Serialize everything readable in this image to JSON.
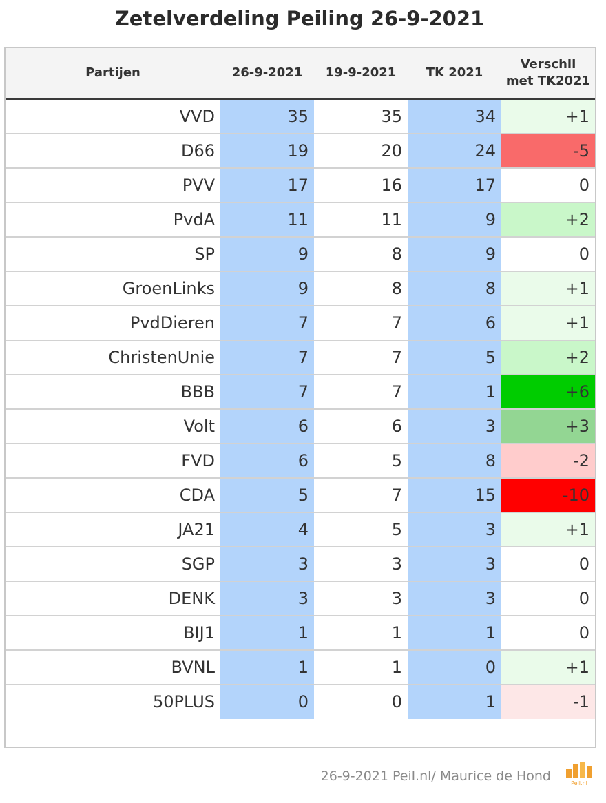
{
  "chart_data": {
    "type": "table",
    "title": "Zetelverdeling Peiling 26-9-2021",
    "columns": [
      "Partijen",
      "26-9-2021",
      "19-9-2021",
      "TK 2021",
      "Verschil met TK2021"
    ],
    "rows": [
      {
        "party": "VVD",
        "p26": "35",
        "p19": "35",
        "tk": "34",
        "diff": "+1"
      },
      {
        "party": "D66",
        "p26": "19",
        "p19": "20",
        "tk": "24",
        "diff": "-5"
      },
      {
        "party": "PVV",
        "p26": "17",
        "p19": "16",
        "tk": "17",
        "diff": "0"
      },
      {
        "party": "PvdA",
        "p26": "11",
        "p19": "11",
        "tk": "9",
        "diff": "+2"
      },
      {
        "party": "SP",
        "p26": "9",
        "p19": "8",
        "tk": "9",
        "diff": "0"
      },
      {
        "party": "GroenLinks",
        "p26": "9",
        "p19": "8",
        "tk": "8",
        "diff": "+1"
      },
      {
        "party": "PvdDieren",
        "p26": "7",
        "p19": "7",
        "tk": "6",
        "diff": "+1"
      },
      {
        "party": "ChristenUnie",
        "p26": "7",
        "p19": "7",
        "tk": "5",
        "diff": "+2"
      },
      {
        "party": "BBB",
        "p26": "7",
        "p19": "7",
        "tk": "1",
        "diff": "+6"
      },
      {
        "party": "Volt",
        "p26": "6",
        "p19": "6",
        "tk": "3",
        "diff": "+3"
      },
      {
        "party": "FVD",
        "p26": "6",
        "p19": "5",
        "tk": "8",
        "diff": "-2"
      },
      {
        "party": "CDA",
        "p26": "5",
        "p19": "7",
        "tk": "15",
        "diff": "-10"
      },
      {
        "party": "JA21",
        "p26": "4",
        "p19": "5",
        "tk": "3",
        "diff": "+1"
      },
      {
        "party": "SGP",
        "p26": "3",
        "p19": "3",
        "tk": "3",
        "diff": "0"
      },
      {
        "party": "DENK",
        "p26": "3",
        "p19": "3",
        "tk": "3",
        "diff": "0"
      },
      {
        "party": "BIJ1",
        "p26": "1",
        "p19": "1",
        "tk": "1",
        "diff": "0"
      },
      {
        "party": "BVNL",
        "p26": "1",
        "p19": "1",
        "tk": "0",
        "diff": "+1"
      },
      {
        "party": "50PLUS",
        "p26": "0",
        "p19": "0",
        "tk": "1",
        "diff": "-1"
      }
    ],
    "diff_colors": {
      "+1": "#eafbea",
      "+2": "#c9f7c9",
      "+3": "#93d693",
      "+6": "#00cc00",
      "0": "#ffffff",
      "-1": "#fde7e7",
      "-2": "#ffcccc",
      "-5": "#f96a6a",
      "-10": "#ff0000"
    },
    "highlight_column_color": "#b3d4fb"
  },
  "header": {
    "col_party": "Partijen",
    "col_p26": "26-9-2021",
    "col_p19": "19-9-2021",
    "col_tk": "TK 2021",
    "col_diff_line1": "Verschil",
    "col_diff_line2": "met TK2021"
  },
  "footer": {
    "source": "26-9-2021 Peil.nl/ Maurice de Hond"
  },
  "logo": {
    "text": "Peil.nl",
    "icon": "peil-logo-icon",
    "color": "#f0a030"
  }
}
